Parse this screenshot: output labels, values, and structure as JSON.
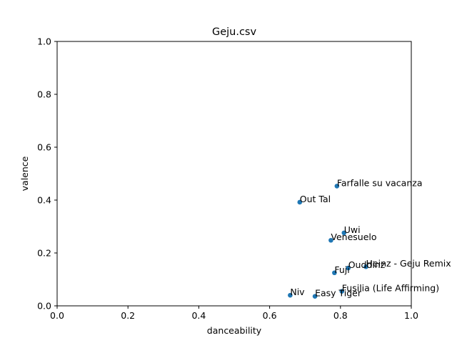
{
  "chart_data": {
    "type": "scatter",
    "title": "Geju.csv",
    "xlabel": "danceability",
    "ylabel": "valence",
    "xlim": [
      0.0,
      1.0
    ],
    "ylim": [
      0.0,
      1.0
    ],
    "xticks": [
      "0.0",
      "0.2",
      "0.4",
      "0.6",
      "0.8",
      "1.0"
    ],
    "yticks": [
      "0.0",
      "0.2",
      "0.4",
      "0.6",
      "0.8",
      "1.0"
    ],
    "grid": false,
    "marker_color": "#1f77b4",
    "points": [
      {
        "label": "Farfalle su vacanza",
        "x": 0.79,
        "y": 0.453
      },
      {
        "label": "Out Tal",
        "x": 0.685,
        "y": 0.392
      },
      {
        "label": "Uwi",
        "x": 0.81,
        "y": 0.276
      },
      {
        "label": "Venesuelo",
        "x": 0.773,
        "y": 0.248
      },
      {
        "label": "Ouddinz",
        "x": 0.822,
        "y": 0.143
      },
      {
        "label": "Heinz - Geju Remix",
        "x": 0.872,
        "y": 0.148
      },
      {
        "label": "Fuji",
        "x": 0.783,
        "y": 0.125
      },
      {
        "label": "Fusilia (Life Affirming)",
        "x": 0.804,
        "y": 0.055
      },
      {
        "label": "Niv",
        "x": 0.658,
        "y": 0.04
      },
      {
        "label": "Easy Tiger",
        "x": 0.728,
        "y": 0.036
      }
    ]
  }
}
